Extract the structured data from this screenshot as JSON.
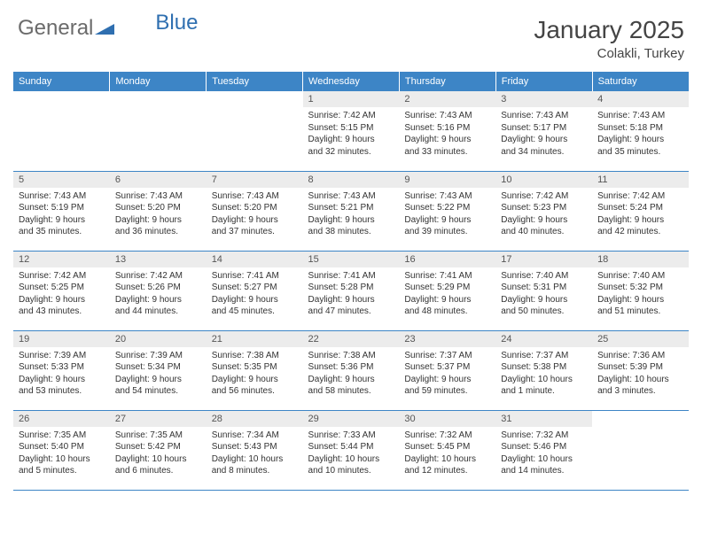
{
  "brand": {
    "part1": "General",
    "part2": "Blue"
  },
  "title": "January 2025",
  "location": "Colakli, Turkey",
  "colors": {
    "header_bg": "#3d85c6",
    "header_text": "#ffffff",
    "daynum_bg": "#ececec",
    "daynum_text": "#555555",
    "body_text": "#333333",
    "rule": "#3d85c6",
    "brand_gray": "#6b6b6b",
    "brand_blue": "#2f6fb0"
  },
  "weekdays": [
    "Sunday",
    "Monday",
    "Tuesday",
    "Wednesday",
    "Thursday",
    "Friday",
    "Saturday"
  ],
  "weeks": [
    [
      null,
      null,
      null,
      {
        "n": "1",
        "sr": "Sunrise: 7:42 AM",
        "ss": "Sunset: 5:15 PM",
        "d1": "Daylight: 9 hours",
        "d2": "and 32 minutes."
      },
      {
        "n": "2",
        "sr": "Sunrise: 7:43 AM",
        "ss": "Sunset: 5:16 PM",
        "d1": "Daylight: 9 hours",
        "d2": "and 33 minutes."
      },
      {
        "n": "3",
        "sr": "Sunrise: 7:43 AM",
        "ss": "Sunset: 5:17 PM",
        "d1": "Daylight: 9 hours",
        "d2": "and 34 minutes."
      },
      {
        "n": "4",
        "sr": "Sunrise: 7:43 AM",
        "ss": "Sunset: 5:18 PM",
        "d1": "Daylight: 9 hours",
        "d2": "and 35 minutes."
      }
    ],
    [
      {
        "n": "5",
        "sr": "Sunrise: 7:43 AM",
        "ss": "Sunset: 5:19 PM",
        "d1": "Daylight: 9 hours",
        "d2": "and 35 minutes."
      },
      {
        "n": "6",
        "sr": "Sunrise: 7:43 AM",
        "ss": "Sunset: 5:20 PM",
        "d1": "Daylight: 9 hours",
        "d2": "and 36 minutes."
      },
      {
        "n": "7",
        "sr": "Sunrise: 7:43 AM",
        "ss": "Sunset: 5:20 PM",
        "d1": "Daylight: 9 hours",
        "d2": "and 37 minutes."
      },
      {
        "n": "8",
        "sr": "Sunrise: 7:43 AM",
        "ss": "Sunset: 5:21 PM",
        "d1": "Daylight: 9 hours",
        "d2": "and 38 minutes."
      },
      {
        "n": "9",
        "sr": "Sunrise: 7:43 AM",
        "ss": "Sunset: 5:22 PM",
        "d1": "Daylight: 9 hours",
        "d2": "and 39 minutes."
      },
      {
        "n": "10",
        "sr": "Sunrise: 7:42 AM",
        "ss": "Sunset: 5:23 PM",
        "d1": "Daylight: 9 hours",
        "d2": "and 40 minutes."
      },
      {
        "n": "11",
        "sr": "Sunrise: 7:42 AM",
        "ss": "Sunset: 5:24 PM",
        "d1": "Daylight: 9 hours",
        "d2": "and 42 minutes."
      }
    ],
    [
      {
        "n": "12",
        "sr": "Sunrise: 7:42 AM",
        "ss": "Sunset: 5:25 PM",
        "d1": "Daylight: 9 hours",
        "d2": "and 43 minutes."
      },
      {
        "n": "13",
        "sr": "Sunrise: 7:42 AM",
        "ss": "Sunset: 5:26 PM",
        "d1": "Daylight: 9 hours",
        "d2": "and 44 minutes."
      },
      {
        "n": "14",
        "sr": "Sunrise: 7:41 AM",
        "ss": "Sunset: 5:27 PM",
        "d1": "Daylight: 9 hours",
        "d2": "and 45 minutes."
      },
      {
        "n": "15",
        "sr": "Sunrise: 7:41 AM",
        "ss": "Sunset: 5:28 PM",
        "d1": "Daylight: 9 hours",
        "d2": "and 47 minutes."
      },
      {
        "n": "16",
        "sr": "Sunrise: 7:41 AM",
        "ss": "Sunset: 5:29 PM",
        "d1": "Daylight: 9 hours",
        "d2": "and 48 minutes."
      },
      {
        "n": "17",
        "sr": "Sunrise: 7:40 AM",
        "ss": "Sunset: 5:31 PM",
        "d1": "Daylight: 9 hours",
        "d2": "and 50 minutes."
      },
      {
        "n": "18",
        "sr": "Sunrise: 7:40 AM",
        "ss": "Sunset: 5:32 PM",
        "d1": "Daylight: 9 hours",
        "d2": "and 51 minutes."
      }
    ],
    [
      {
        "n": "19",
        "sr": "Sunrise: 7:39 AM",
        "ss": "Sunset: 5:33 PM",
        "d1": "Daylight: 9 hours",
        "d2": "and 53 minutes."
      },
      {
        "n": "20",
        "sr": "Sunrise: 7:39 AM",
        "ss": "Sunset: 5:34 PM",
        "d1": "Daylight: 9 hours",
        "d2": "and 54 minutes."
      },
      {
        "n": "21",
        "sr": "Sunrise: 7:38 AM",
        "ss": "Sunset: 5:35 PM",
        "d1": "Daylight: 9 hours",
        "d2": "and 56 minutes."
      },
      {
        "n": "22",
        "sr": "Sunrise: 7:38 AM",
        "ss": "Sunset: 5:36 PM",
        "d1": "Daylight: 9 hours",
        "d2": "and 58 minutes."
      },
      {
        "n": "23",
        "sr": "Sunrise: 7:37 AM",
        "ss": "Sunset: 5:37 PM",
        "d1": "Daylight: 9 hours",
        "d2": "and 59 minutes."
      },
      {
        "n": "24",
        "sr": "Sunrise: 7:37 AM",
        "ss": "Sunset: 5:38 PM",
        "d1": "Daylight: 10 hours",
        "d2": "and 1 minute."
      },
      {
        "n": "25",
        "sr": "Sunrise: 7:36 AM",
        "ss": "Sunset: 5:39 PM",
        "d1": "Daylight: 10 hours",
        "d2": "and 3 minutes."
      }
    ],
    [
      {
        "n": "26",
        "sr": "Sunrise: 7:35 AM",
        "ss": "Sunset: 5:40 PM",
        "d1": "Daylight: 10 hours",
        "d2": "and 5 minutes."
      },
      {
        "n": "27",
        "sr": "Sunrise: 7:35 AM",
        "ss": "Sunset: 5:42 PM",
        "d1": "Daylight: 10 hours",
        "d2": "and 6 minutes."
      },
      {
        "n": "28",
        "sr": "Sunrise: 7:34 AM",
        "ss": "Sunset: 5:43 PM",
        "d1": "Daylight: 10 hours",
        "d2": "and 8 minutes."
      },
      {
        "n": "29",
        "sr": "Sunrise: 7:33 AM",
        "ss": "Sunset: 5:44 PM",
        "d1": "Daylight: 10 hours",
        "d2": "and 10 minutes."
      },
      {
        "n": "30",
        "sr": "Sunrise: 7:32 AM",
        "ss": "Sunset: 5:45 PM",
        "d1": "Daylight: 10 hours",
        "d2": "and 12 minutes."
      },
      {
        "n": "31",
        "sr": "Sunrise: 7:32 AM",
        "ss": "Sunset: 5:46 PM",
        "d1": "Daylight: 10 hours",
        "d2": "and 14 minutes."
      },
      null
    ]
  ]
}
